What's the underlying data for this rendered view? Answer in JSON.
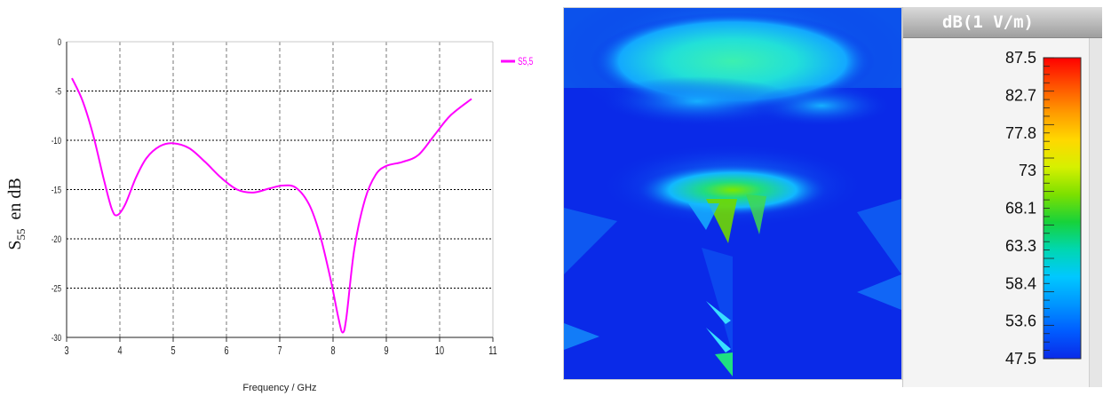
{
  "chart_data": {
    "type": "line",
    "xlabel": "Frequency / GHz",
    "ylabel_main": "S",
    "ylabel_sub": "55",
    "ylabel_rest": "en  dB",
    "xlim": [
      3,
      11
    ],
    "ylim": [
      -30,
      0
    ],
    "xticks": [
      "3",
      "4",
      "5",
      "6",
      "7",
      "8",
      "9",
      "10",
      "11"
    ],
    "yticks": [
      "0",
      "-5",
      "-10",
      "-15",
      "-20",
      "-25",
      "-30"
    ],
    "grid": true,
    "legend_position": "top-right",
    "series": [
      {
        "name": "S5,5",
        "color": "#ff00ff",
        "x": [
          3.1,
          3.3,
          3.5,
          3.7,
          3.85,
          3.95,
          4.1,
          4.3,
          4.5,
          4.75,
          5.0,
          5.3,
          5.6,
          5.9,
          6.2,
          6.5,
          6.8,
          7.05,
          7.3,
          7.55,
          7.75,
          7.95,
          8.1,
          8.18,
          8.25,
          8.4,
          8.6,
          8.8,
          9.0,
          9.3,
          9.6,
          9.9,
          10.2,
          10.6
        ],
        "y": [
          -3.7,
          -6.0,
          -9.5,
          -14.0,
          -17.0,
          -17.6,
          -16.5,
          -13.8,
          -11.8,
          -10.6,
          -10.3,
          -10.8,
          -12.2,
          -13.8,
          -15.0,
          -15.3,
          -14.9,
          -14.6,
          -14.8,
          -16.5,
          -19.5,
          -24.0,
          -28.0,
          -29.5,
          -28.0,
          -21.0,
          -16.0,
          -13.5,
          -12.6,
          -12.2,
          -11.5,
          -9.5,
          -7.5,
          -5.8
        ]
      }
    ]
  },
  "colorbar": {
    "title": "dB(1 V/m)",
    "ticks": [
      "87.5",
      "82.7",
      "77.8",
      "73",
      "68.1",
      "63.3",
      "58.4",
      "53.6",
      "47.5"
    ],
    "colors": [
      "#ff0000",
      "#ff5000",
      "#ff9a00",
      "#ffd800",
      "#d6f000",
      "#7ce000",
      "#17d23a",
      "#00d7b0",
      "#00c8ff",
      "#0096ff",
      "#005cff",
      "#0a2ae8"
    ]
  }
}
